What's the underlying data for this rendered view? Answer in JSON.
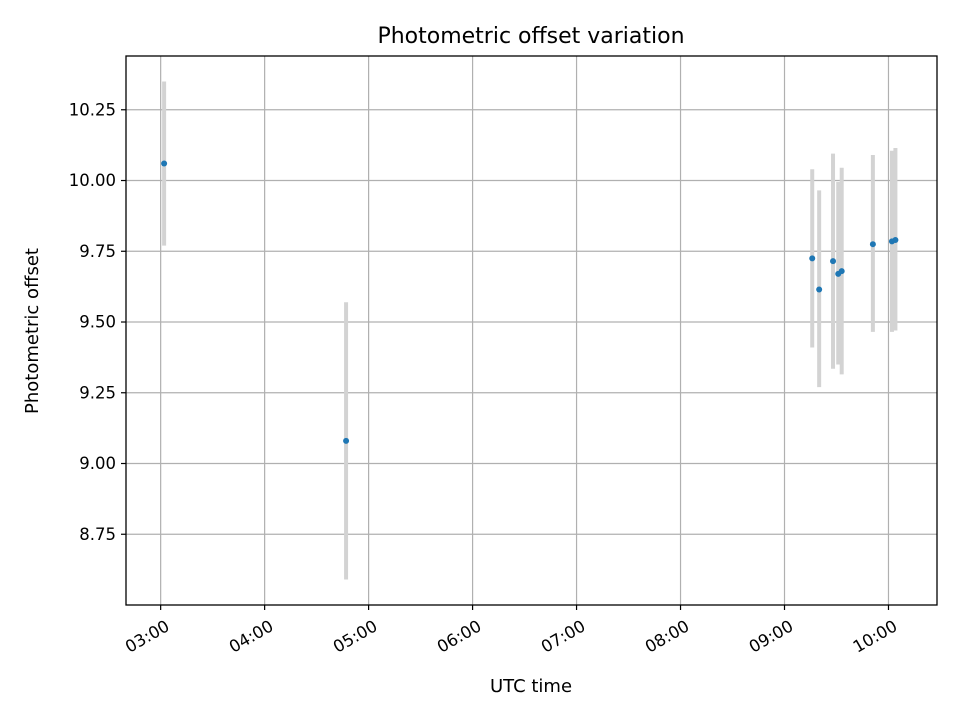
{
  "chart_data": {
    "type": "scatter",
    "title": "Photometric offset variation",
    "xlabel": "UTC time",
    "ylabel": "Photometric offset",
    "xlim": [
      "02:40",
      "10:28"
    ],
    "ylim": [
      8.5,
      10.44
    ],
    "x_ticks": [
      "03:00",
      "04:00",
      "05:00",
      "06:00",
      "07:00",
      "08:00",
      "09:00",
      "10:00"
    ],
    "y_ticks": [
      "8.75",
      "9.00",
      "9.25",
      "9.50",
      "9.75",
      "10.00",
      "10.25"
    ],
    "grid": true,
    "colors": {
      "point": "#1f77b4",
      "errorbar": "#d3d3d3",
      "grid": "#b0b0b0"
    },
    "points": [
      {
        "x": "03:02",
        "y": 10.06,
        "ylow": 9.77,
        "yhigh": 10.35
      },
      {
        "x": "04:47",
        "y": 9.08,
        "ylow": 8.59,
        "yhigh": 9.57
      },
      {
        "x": "09:16",
        "y": 9.725,
        "ylow": 9.41,
        "yhigh": 10.04
      },
      {
        "x": "09:20",
        "y": 9.615,
        "ylow": 9.27,
        "yhigh": 9.965
      },
      {
        "x": "09:28",
        "y": 9.715,
        "ylow": 9.335,
        "yhigh": 10.095
      },
      {
        "x": "09:31",
        "y": 9.67,
        "ylow": 9.35,
        "yhigh": 9.995
      },
      {
        "x": "09:33",
        "y": 9.68,
        "ylow": 9.315,
        "yhigh": 10.045
      },
      {
        "x": "09:51",
        "y": 9.775,
        "ylow": 9.465,
        "yhigh": 10.09
      },
      {
        "x": "10:02",
        "y": 9.785,
        "ylow": 9.465,
        "yhigh": 10.105
      },
      {
        "x": "10:04",
        "y": 9.79,
        "ylow": 9.47,
        "yhigh": 10.115
      }
    ]
  }
}
